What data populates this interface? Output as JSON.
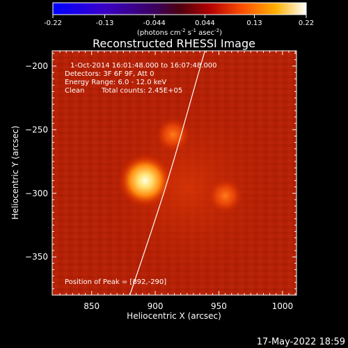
{
  "colorbar": {
    "tick_labels": [
      "-0.22",
      "-0.13",
      "-0.044",
      "0.044",
      "0.13",
      "0.22"
    ],
    "tick_values": [
      -0.22,
      -0.13,
      -0.044,
      0.044,
      0.13,
      0.22
    ],
    "range": [
      -0.22,
      0.22
    ],
    "unit_main": "(photons cm",
    "unit_sup1": "-2",
    "unit_mid1": " s",
    "unit_sup2": "-1",
    "unit_mid2": " asec",
    "unit_sup3": "-2",
    "unit_end": ")"
  },
  "title": "Reconstructed RHESSI Image",
  "annotations": {
    "time_range": "1-Oct-2014 16:01:48.000 to 16:07:48.000",
    "detectors": "Detectors: 3F 6F 9F, Att 0",
    "energy_range": "Energy Range: 6.0 - 12.0 keV",
    "algorithm": "Clean",
    "total_counts": "Total counts: 2.45E+05",
    "peak_position": "Position of Peak = [892,-290]"
  },
  "axes": {
    "xlabel": "Heliocentric X (arcsec)",
    "ylabel": "Heliocentric Y (arcsec)",
    "x_ticks": [
      850,
      900,
      950,
      1000
    ],
    "y_ticks": [
      -200,
      -250,
      -300,
      -350
    ],
    "x_tick_labels": [
      "850",
      "900",
      "950",
      "1000"
    ],
    "y_tick_labels": [
      "−200",
      "−250",
      "−300",
      "−350"
    ]
  },
  "chart_data": {
    "type": "heatmap",
    "title": "Reconstructed RHESSI Image",
    "xlabel": "Heliocentric X (arcsec)",
    "ylabel": "Heliocentric Y (arcsec)",
    "xlim": [
      819,
      1011
    ],
    "ylim": [
      -380,
      -188
    ],
    "color_range": [
      -0.22,
      0.22
    ],
    "sources": [
      {
        "x": 892,
        "y": -290,
        "peak": 0.22
      },
      {
        "x": 914,
        "y": -254,
        "peak": 0.1
      },
      {
        "x": 955,
        "y": -302,
        "peak": 0.09
      }
    ],
    "limb_points": [
      [
        880,
        -380
      ],
      [
        897,
        -330
      ],
      [
        913,
        -280
      ],
      [
        927,
        -230
      ],
      [
        939,
        -188
      ]
    ]
  },
  "footer": {
    "date": "17-May-2022 18:59"
  },
  "colors": {
    "background": "#000000",
    "text": "#ffffff",
    "limb": "#ffffff"
  }
}
